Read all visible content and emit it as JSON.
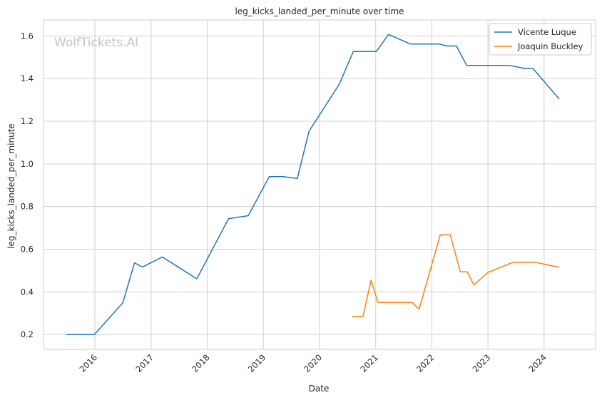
{
  "chart_data": {
    "type": "line",
    "title": "leg_kicks_landed_per_minute over time",
    "xlabel": "Date",
    "ylabel": "leg_kicks_landed_per_minute",
    "watermark": "WolfTickets.AI",
    "xlim": [
      "2015-02-01",
      "2024-12-01"
    ],
    "ylim": [
      0.13,
      1.675
    ],
    "x_ticks": [
      "2016-01-01",
      "2017-01-01",
      "2018-01-01",
      "2019-01-01",
      "2020-01-01",
      "2021-01-01",
      "2022-01-01",
      "2023-01-01",
      "2024-01-01"
    ],
    "x_tick_labels": [
      "2016",
      "2017",
      "2018",
      "2019",
      "2020",
      "2021",
      "2022",
      "2023",
      "2024"
    ],
    "y_ticks": [
      0.2,
      0.4,
      0.6,
      0.8,
      1.0,
      1.2,
      1.4,
      1.6
    ],
    "y_tick_labels": [
      "0.2",
      "0.4",
      "0.6",
      "0.8",
      "1.0",
      "1.2",
      "1.4",
      "1.6"
    ],
    "grid": true,
    "legend": "top-right",
    "series": [
      {
        "name": "Vicente Luque",
        "color": "#1f77b4",
        "points": [
          [
            "2015-07-01",
            0.2
          ],
          [
            "2015-12-29",
            0.2
          ],
          [
            "2016-07-01",
            0.348
          ],
          [
            "2016-09-15",
            0.536
          ],
          [
            "2016-11-05",
            0.516
          ],
          [
            "2017-03-15",
            0.563
          ],
          [
            "2017-10-25",
            0.461
          ],
          [
            "2018-05-20",
            0.743
          ],
          [
            "2018-09-25",
            0.757
          ],
          [
            "2019-02-08",
            0.94
          ],
          [
            "2019-05-10",
            0.94
          ],
          [
            "2019-08-10",
            0.932
          ],
          [
            "2019-10-25",
            1.153
          ],
          [
            "2020-05-10",
            1.375
          ],
          [
            "2020-08-08",
            1.527
          ],
          [
            "2021-01-05",
            1.527
          ],
          [
            "2021-03-25",
            1.607
          ],
          [
            "2021-08-15",
            1.562
          ],
          [
            "2022-02-20",
            1.562
          ],
          [
            "2022-04-10",
            1.553
          ],
          [
            "2022-06-10",
            1.553
          ],
          [
            "2022-08-15",
            1.462
          ],
          [
            "2023-05-20",
            1.462
          ],
          [
            "2023-08-25",
            1.448
          ],
          [
            "2023-10-20",
            1.448
          ],
          [
            "2024-04-08",
            1.304
          ]
        ]
      },
      {
        "name": "Joaquin Buckley",
        "color": "#ff7f0e",
        "points": [
          [
            "2020-08-01",
            0.285
          ],
          [
            "2020-10-10",
            0.285
          ],
          [
            "2020-12-02",
            0.455
          ],
          [
            "2021-01-15",
            0.35
          ],
          [
            "2021-08-25",
            0.35
          ],
          [
            "2021-10-10",
            0.319
          ],
          [
            "2022-02-25",
            0.667
          ],
          [
            "2022-05-01",
            0.667
          ],
          [
            "2022-07-05",
            0.494
          ],
          [
            "2022-08-20",
            0.494
          ],
          [
            "2022-10-01",
            0.432
          ],
          [
            "2023-01-01",
            0.491
          ],
          [
            "2023-06-15",
            0.539
          ],
          [
            "2023-11-01",
            0.539
          ],
          [
            "2024-04-08",
            0.515
          ]
        ]
      }
    ]
  }
}
